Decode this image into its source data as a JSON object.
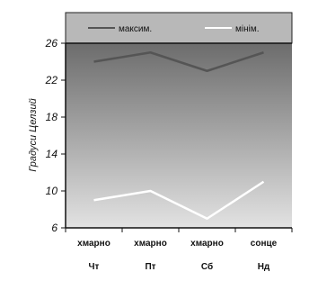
{
  "chart_data": {
    "type": "line",
    "ylabel": "Градуси Целзий",
    "ylim": [
      6,
      26
    ],
    "yticks": [
      6,
      10,
      14,
      18,
      22,
      26
    ],
    "categories": [
      {
        "top": "хмарно",
        "bottom": "Чт"
      },
      {
        "top": "хмарно",
        "bottom": "Пт"
      },
      {
        "top": "хмарно",
        "bottom": "Сб"
      },
      {
        "top": "сонце",
        "bottom": "Нд"
      }
    ],
    "series": [
      {
        "name": "максим.",
        "color": "#555555",
        "values": [
          24,
          25,
          23,
          25
        ]
      },
      {
        "name": "мінім.",
        "color": "#ffffff",
        "values": [
          9,
          10,
          7,
          11
        ]
      }
    ],
    "legend_position": "top",
    "background": "gradient-gray"
  }
}
